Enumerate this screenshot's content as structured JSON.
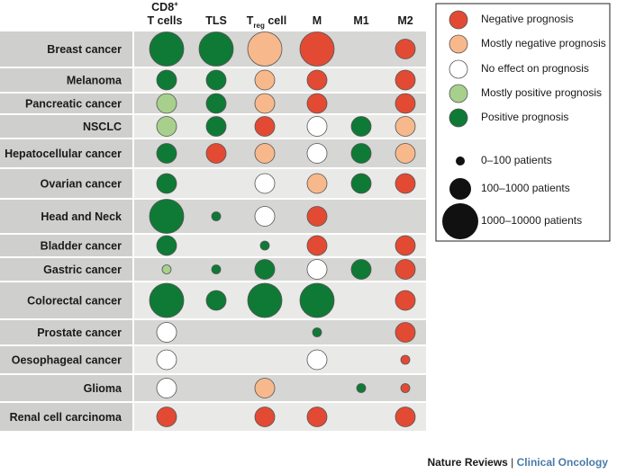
{
  "credit": {
    "journal": "Nature Reviews",
    "separator": " | ",
    "section": "Clinical Oncology"
  },
  "colors": {
    "negative": "#e24a33",
    "mostly_negative": "#f7b98c",
    "no_effect": "#ffffff",
    "mostly_positive": "#a8d08d",
    "positive": "#0e7a35",
    "label_shade": "#cfcfcd",
    "band_dark": "#d6d6d4",
    "band_light": "#e9e9e7"
  },
  "chart_data": {
    "type": "bubble_matrix",
    "columns": [
      {
        "key": "cd8",
        "label_lines": [
          "CD8+",
          "T cells"
        ]
      },
      {
        "key": "tls",
        "label_lines": [
          "TLS"
        ]
      },
      {
        "key": "treg",
        "label_lines": [
          "Treg cell"
        ]
      },
      {
        "key": "m",
        "label_lines": [
          "M"
        ]
      },
      {
        "key": "m1",
        "label_lines": [
          "M1"
        ]
      },
      {
        "key": "m2",
        "label_lines": [
          "M2"
        ]
      }
    ],
    "rows": [
      {
        "label": "Breast cancer",
        "cells": [
          [
            "positive",
            3
          ],
          [
            "positive",
            3
          ],
          [
            "mostly_negative",
            3
          ],
          [
            "negative",
            3
          ],
          null,
          [
            "negative",
            2
          ]
        ]
      },
      {
        "label": "Melanoma",
        "cells": [
          [
            "positive",
            2
          ],
          [
            "positive",
            2
          ],
          [
            "mostly_negative",
            2
          ],
          [
            "negative",
            2
          ],
          null,
          [
            "negative",
            2
          ]
        ]
      },
      {
        "label": "Pancreatic cancer",
        "cells": [
          [
            "mostly_positive",
            2
          ],
          [
            "positive",
            2
          ],
          [
            "mostly_negative",
            2
          ],
          [
            "negative",
            2
          ],
          null,
          [
            "negative",
            2
          ]
        ]
      },
      {
        "label": "NSCLC",
        "cells": [
          [
            "mostly_positive",
            2
          ],
          [
            "positive",
            2
          ],
          [
            "negative",
            2
          ],
          [
            "no_effect",
            2
          ],
          [
            "positive",
            2
          ],
          [
            "mostly_negative",
            2
          ]
        ]
      },
      {
        "label": "Hepatocellular cancer",
        "cells": [
          [
            "positive",
            2
          ],
          [
            "negative",
            2
          ],
          [
            "mostly_negative",
            2
          ],
          [
            "no_effect",
            2
          ],
          [
            "positive",
            2
          ],
          [
            "mostly_negative",
            2
          ]
        ]
      },
      {
        "label": "Ovarian cancer",
        "cells": [
          [
            "positive",
            2
          ],
          null,
          [
            "no_effect",
            2
          ],
          [
            "mostly_negative",
            2
          ],
          [
            "positive",
            2
          ],
          [
            "negative",
            2
          ]
        ]
      },
      {
        "label": "Head and Neck",
        "cells": [
          [
            "positive",
            3
          ],
          [
            "positive",
            1
          ],
          [
            "no_effect",
            2
          ],
          [
            "negative",
            2
          ],
          null,
          null
        ]
      },
      {
        "label": "Bladder cancer",
        "cells": [
          [
            "positive",
            2
          ],
          null,
          [
            "positive",
            1
          ],
          [
            "negative",
            2
          ],
          null,
          [
            "negative",
            2
          ]
        ]
      },
      {
        "label": "Gastric cancer",
        "cells": [
          [
            "mostly_positive",
            1
          ],
          [
            "positive",
            1
          ],
          [
            "positive",
            2
          ],
          [
            "no_effect",
            2
          ],
          [
            "positive",
            2
          ],
          [
            "negative",
            2
          ]
        ]
      },
      {
        "label": "Colorectal cancer",
        "cells": [
          [
            "positive",
            3
          ],
          [
            "positive",
            2
          ],
          [
            "positive",
            3
          ],
          [
            "positive",
            3
          ],
          null,
          [
            "negative",
            2
          ]
        ]
      },
      {
        "label": "Prostate cancer",
        "cells": [
          [
            "no_effect",
            2
          ],
          null,
          null,
          [
            "positive",
            1
          ],
          null,
          [
            "negative",
            2
          ]
        ]
      },
      {
        "label": "Oesophageal cancer",
        "cells": [
          [
            "no_effect",
            2
          ],
          null,
          null,
          [
            "no_effect",
            2
          ],
          null,
          [
            "negative",
            1
          ]
        ]
      },
      {
        "label": "Glioma",
        "cells": [
          [
            "no_effect",
            2
          ],
          null,
          [
            "mostly_negative",
            2
          ],
          null,
          [
            "positive",
            1
          ],
          [
            "negative",
            1
          ]
        ]
      },
      {
        "label": "Renal cell carcinoma",
        "cells": [
          [
            "negative",
            2
          ],
          null,
          [
            "negative",
            2
          ],
          [
            "negative",
            2
          ],
          null,
          [
            "negative",
            2
          ]
        ]
      }
    ],
    "legend": {
      "colors": [
        {
          "key": "negative",
          "label": "Negative prognosis"
        },
        {
          "key": "mostly_negative",
          "label": "Mostly negative prognosis"
        },
        {
          "key": "no_effect",
          "label": "No effect on prognosis"
        },
        {
          "key": "mostly_positive",
          "label": "Mostly positive prognosis"
        },
        {
          "key": "positive",
          "label": "Positive prognosis"
        }
      ],
      "sizes": [
        {
          "level": 1,
          "label": "0–100 patients"
        },
        {
          "level": 2,
          "label": "100–1000 patients"
        },
        {
          "level": 3,
          "label": "1000–10000 patients"
        }
      ]
    }
  }
}
